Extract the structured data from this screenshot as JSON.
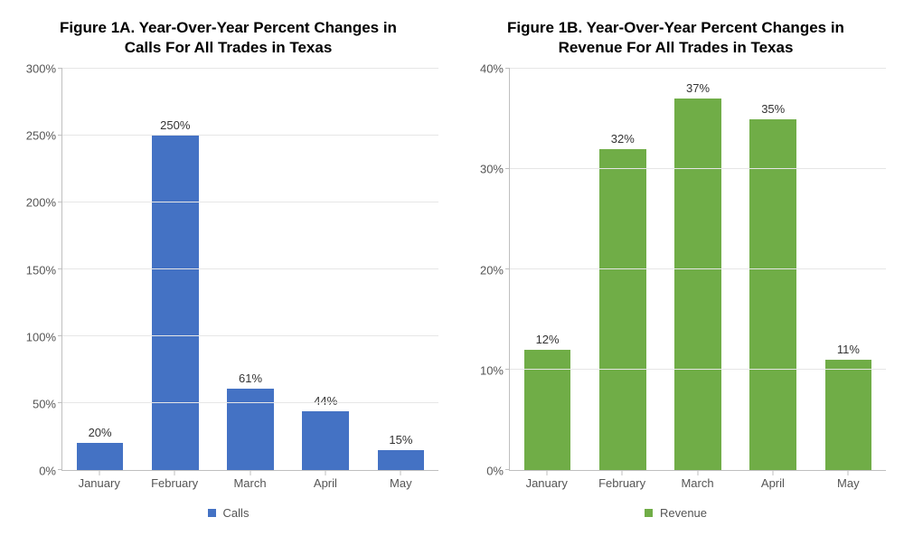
{
  "background_color": "#ffffff",
  "axis_color": "#bfbfbf",
  "grid_color": "#e6e6e6",
  "label_color": "#555555",
  "title_color": "#000000",
  "title_fontsize": 17,
  "label_fontsize": 13,
  "chart_a": {
    "type": "bar",
    "title": "Figure 1A. Year-Over-Year Percent Changes in\nCalls For All Trades in Texas",
    "categories": [
      "January",
      "February",
      "March",
      "April",
      "May"
    ],
    "values": [
      20,
      250,
      61,
      44,
      15
    ],
    "value_labels": [
      "20%",
      "250%",
      "61%",
      "44%",
      "15%"
    ],
    "bar_color": "#4472c4",
    "ylim": [
      0,
      300
    ],
    "ytick_step": 50,
    "ytick_labels": [
      "0%",
      "50%",
      "100%",
      "150%",
      "200%",
      "250%",
      "300%"
    ],
    "legend_label": "Calls",
    "bar_width": 0.62
  },
  "chart_b": {
    "type": "bar",
    "title": "Figure 1B. Year-Over-Year Percent Changes in\nRevenue For All Trades in Texas",
    "categories": [
      "January",
      "February",
      "March",
      "April",
      "May"
    ],
    "values": [
      12,
      32,
      37,
      35,
      11
    ],
    "value_labels": [
      "12%",
      "32%",
      "37%",
      "35%",
      "11%"
    ],
    "bar_color": "#70ad47",
    "ylim": [
      0,
      40
    ],
    "ytick_step": 10,
    "ytick_labels": [
      "0%",
      "10%",
      "20%",
      "30%",
      "40%"
    ],
    "legend_label": "Revenue",
    "bar_width": 0.62
  }
}
